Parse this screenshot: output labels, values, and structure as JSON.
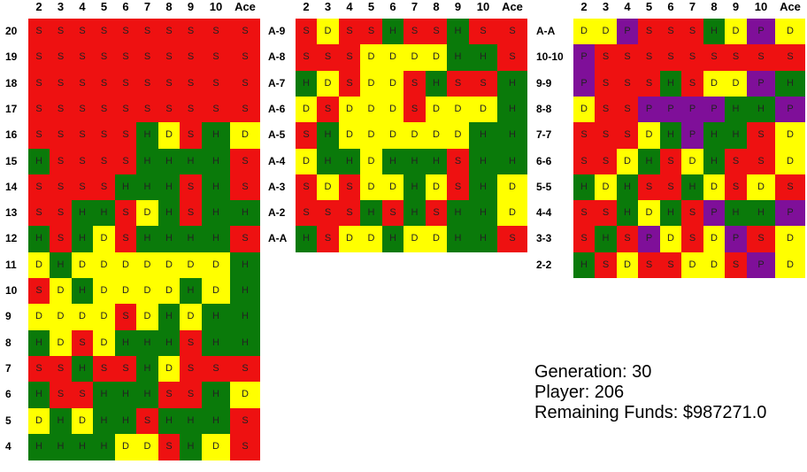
{
  "dealer_columns": [
    "2",
    "3",
    "4",
    "5",
    "6",
    "7",
    "8",
    "9",
    "10",
    "Ace"
  ],
  "colors": {
    "S": "#ee1111",
    "H": "#0a7a0a",
    "D": "#ffff00",
    "P": "#7f0f99"
  },
  "hard_table": {
    "rows": [
      {
        "label": "20",
        "cells": [
          "S",
          "S",
          "S",
          "S",
          "S",
          "S",
          "S",
          "S",
          "S",
          "S"
        ]
      },
      {
        "label": "19",
        "cells": [
          "S",
          "S",
          "S",
          "S",
          "S",
          "S",
          "S",
          "S",
          "S",
          "S"
        ]
      },
      {
        "label": "18",
        "cells": [
          "S",
          "S",
          "S",
          "S",
          "S",
          "S",
          "S",
          "S",
          "S",
          "S"
        ]
      },
      {
        "label": "17",
        "cells": [
          "S",
          "S",
          "S",
          "S",
          "S",
          "S",
          "S",
          "S",
          "S",
          "S"
        ]
      },
      {
        "label": "16",
        "cells": [
          "S",
          "S",
          "S",
          "S",
          "S",
          "H",
          "D",
          "S",
          "H",
          "D"
        ]
      },
      {
        "label": "15",
        "cells": [
          "H",
          "S",
          "S",
          "S",
          "S",
          "H",
          "H",
          "H",
          "H",
          "S"
        ]
      },
      {
        "label": "14",
        "cells": [
          "S",
          "S",
          "S",
          "S",
          "H",
          "H",
          "H",
          "S",
          "H",
          "S"
        ]
      },
      {
        "label": "13",
        "cells": [
          "S",
          "S",
          "H",
          "H",
          "S",
          "D",
          "H",
          "S",
          "H",
          "H"
        ]
      },
      {
        "label": "12",
        "cells": [
          "H",
          "S",
          "H",
          "D",
          "S",
          "H",
          "H",
          "H",
          "H",
          "S"
        ]
      },
      {
        "label": "11",
        "cells": [
          "D",
          "H",
          "D",
          "D",
          "D",
          "D",
          "D",
          "D",
          "D",
          "H"
        ]
      },
      {
        "label": "10",
        "cells": [
          "S",
          "D",
          "H",
          "D",
          "D",
          "D",
          "D",
          "H",
          "D",
          "H"
        ]
      },
      {
        "label": "9",
        "cells": [
          "D",
          "D",
          "D",
          "D",
          "S",
          "D",
          "H",
          "D",
          "H",
          "H"
        ]
      },
      {
        "label": "8",
        "cells": [
          "H",
          "D",
          "S",
          "D",
          "H",
          "H",
          "H",
          "S",
          "H",
          "H"
        ]
      },
      {
        "label": "7",
        "cells": [
          "S",
          "S",
          "H",
          "S",
          "S",
          "H",
          "D",
          "S",
          "S",
          "S"
        ]
      },
      {
        "label": "6",
        "cells": [
          "H",
          "S",
          "S",
          "H",
          "H",
          "H",
          "S",
          "S",
          "H",
          "D"
        ]
      },
      {
        "label": "5",
        "cells": [
          "D",
          "H",
          "D",
          "H",
          "H",
          "S",
          "H",
          "H",
          "H",
          "S"
        ]
      },
      {
        "label": "4",
        "cells": [
          "H",
          "H",
          "H",
          "H",
          "D",
          "D",
          "S",
          "H",
          "D",
          "S"
        ]
      }
    ]
  },
  "soft_table": {
    "rows": [
      {
        "label": "A-9",
        "cells": [
          "S",
          "D",
          "S",
          "S",
          "H",
          "S",
          "S",
          "H",
          "S",
          "S"
        ]
      },
      {
        "label": "A-8",
        "cells": [
          "S",
          "S",
          "S",
          "D",
          "D",
          "D",
          "D",
          "H",
          "H",
          "S"
        ]
      },
      {
        "label": "A-7",
        "cells": [
          "H",
          "D",
          "S",
          "D",
          "D",
          "S",
          "H",
          "S",
          "S",
          "H"
        ]
      },
      {
        "label": "A-6",
        "cells": [
          "D",
          "S",
          "D",
          "D",
          "D",
          "S",
          "D",
          "D",
          "D",
          "H"
        ]
      },
      {
        "label": "A-5",
        "cells": [
          "S",
          "H",
          "D",
          "D",
          "D",
          "D",
          "D",
          "D",
          "H",
          "H"
        ]
      },
      {
        "label": "A-4",
        "cells": [
          "D",
          "H",
          "H",
          "D",
          "H",
          "H",
          "H",
          "S",
          "H",
          "H"
        ]
      },
      {
        "label": "A-3",
        "cells": [
          "S",
          "D",
          "S",
          "D",
          "D",
          "H",
          "D",
          "S",
          "H",
          "D"
        ]
      },
      {
        "label": "A-2",
        "cells": [
          "S",
          "S",
          "S",
          "H",
          "S",
          "H",
          "S",
          "H",
          "H",
          "D"
        ]
      },
      {
        "label": "A-A",
        "cells": [
          "H",
          "S",
          "D",
          "D",
          "H",
          "D",
          "D",
          "H",
          "H",
          "S"
        ]
      }
    ]
  },
  "pairs_table": {
    "rows": [
      {
        "label": "A-A",
        "cells": [
          "D",
          "D",
          "P",
          "S",
          "S",
          "S",
          "H",
          "D",
          "P",
          "D"
        ]
      },
      {
        "label": "10-10",
        "cells": [
          "P",
          "S",
          "S",
          "S",
          "S",
          "S",
          "S",
          "S",
          "S",
          "S"
        ]
      },
      {
        "label": "9-9",
        "cells": [
          "P",
          "S",
          "S",
          "S",
          "H",
          "S",
          "D",
          "D",
          "P",
          "H"
        ]
      },
      {
        "label": "8-8",
        "cells": [
          "D",
          "S",
          "S",
          "P",
          "P",
          "P",
          "P",
          "H",
          "H",
          "P"
        ]
      },
      {
        "label": "7-7",
        "cells": [
          "S",
          "S",
          "S",
          "D",
          "H",
          "P",
          "H",
          "H",
          "S",
          "D"
        ]
      },
      {
        "label": "6-6",
        "cells": [
          "S",
          "S",
          "D",
          "H",
          "S",
          "D",
          "H",
          "S",
          "S",
          "D"
        ]
      },
      {
        "label": "5-5",
        "cells": [
          "H",
          "D",
          "H",
          "S",
          "S",
          "H",
          "D",
          "S",
          "D",
          "S"
        ]
      },
      {
        "label": "4-4",
        "cells": [
          "S",
          "S",
          "H",
          "D",
          "H",
          "S",
          "P",
          "H",
          "H",
          "P"
        ]
      },
      {
        "label": "3-3",
        "cells": [
          "S",
          "H",
          "S",
          "P",
          "D",
          "S",
          "D",
          "P",
          "S",
          "D"
        ]
      },
      {
        "label": "2-2",
        "cells": [
          "H",
          "S",
          "D",
          "S",
          "S",
          "D",
          "D",
          "S",
          "P",
          "D"
        ]
      }
    ]
  },
  "info": {
    "generation": "Generation: 30",
    "player": "Player: 206",
    "funds": "Remaining Funds: $987271.0"
  }
}
